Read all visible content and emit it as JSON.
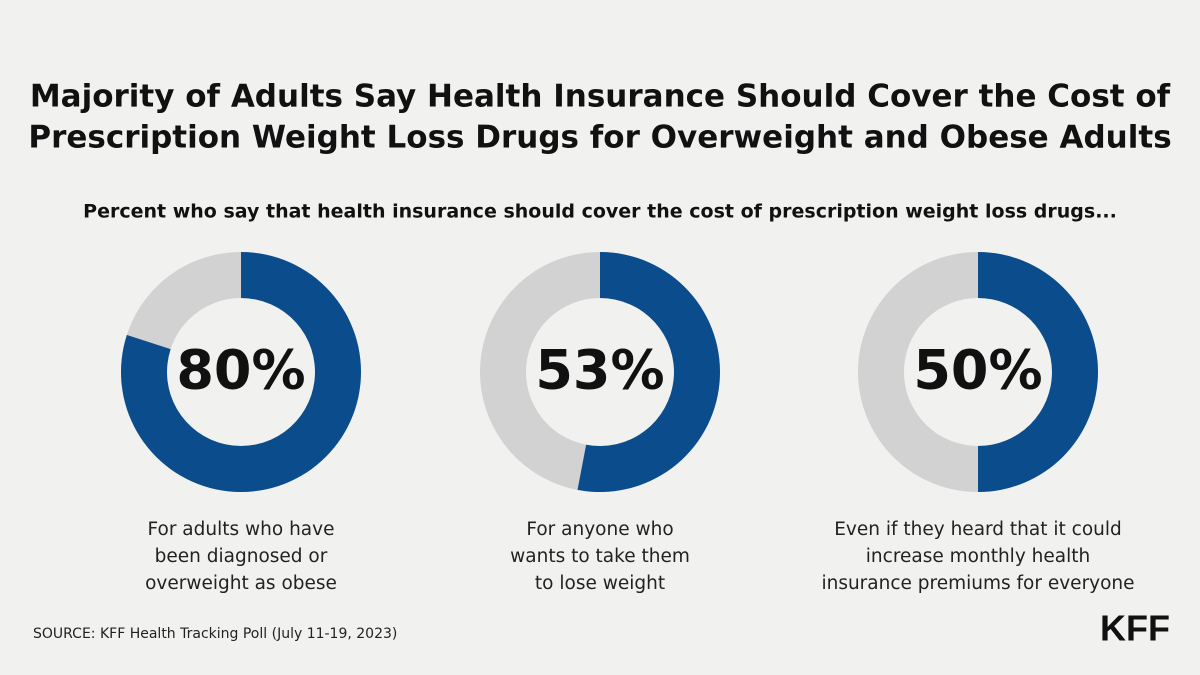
{
  "title": [
    "Majority of Adults Say Health Insurance Should Cover the Cost of",
    "Prescription Weight Loss Drugs for Overweight and Obese Adults"
  ],
  "subtitle": "Percent who say that health insurance should cover the cost of prescription weight loss drugs...",
  "chart_data": [
    {
      "type": "donut",
      "values": [
        80
      ],
      "value_labels": [
        "80%"
      ],
      "color": "#0b4c8c",
      "track_color": "#d2d2d2",
      "caption": [
        "For adults who have",
        "been diagnosed or",
        "overweight as obese"
      ]
    },
    {
      "type": "donut",
      "values": [
        53
      ],
      "value_labels": [
        "53%"
      ],
      "color": "#0b4c8c",
      "track_color": "#d2d2d2",
      "caption": [
        "For anyone who",
        "wants to take them",
        "to lose weight"
      ]
    },
    {
      "type": "donut",
      "values": [
        50
      ],
      "value_labels": [
        "50%"
      ],
      "color": "#0b4c8c",
      "track_color": "#d2d2d2",
      "caption": [
        "Even if they heard that it could",
        "increase monthly health",
        "insurance premiums for everyone"
      ]
    }
  ],
  "source": "SOURCE: KFF Health Tracking Poll (July 11-19, 2023)",
  "logo": "KFF"
}
